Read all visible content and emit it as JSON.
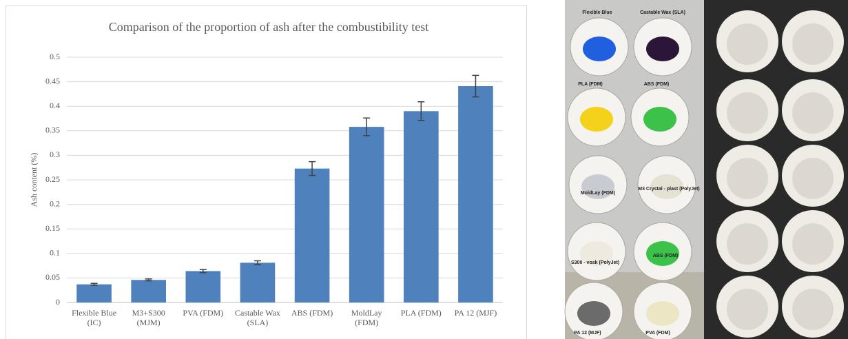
{
  "chart_data": {
    "type": "bar",
    "title": "Comparison of the proportion of ash after the combustibility test",
    "y_label": "Ash content (%)",
    "categories": [
      "Flexible Blue\n(IC)",
      "M3+S300\n(MJM)",
      "PVA (FDM)",
      "Castable Wax\n(SLA)",
      "ABS (FDM)",
      "MoldLay\n(FDM)",
      "PLA (FDM)",
      "PA 12 (MJF)"
    ],
    "values": [
      0.037,
      0.046,
      0.064,
      0.081,
      0.273,
      0.358,
      0.39,
      0.441
    ],
    "errors": [
      0.002,
      0.002,
      0.003,
      0.004,
      0.014,
      0.018,
      0.019,
      0.022
    ],
    "color": "#4f81bd",
    "ylim": [
      0,
      0.5
    ],
    "yticks": [
      0,
      0.05,
      0.1,
      0.15,
      0.2,
      0.25,
      0.3,
      0.35,
      0.4,
      0.45,
      0.5
    ],
    "grid": true
  },
  "photo": {
    "labels": [
      "Flexible Blue",
      "Castable Wax (SLA)",
      "PLA (FDM)",
      "ABS (FDM)",
      "MoldLay (FDM)",
      "M3 Crystal - plast (PolyJet)",
      "S300 - vosk (PolyJet)",
      "ABS (FDM)",
      "PA 12 (MJF)",
      "PVA (FDM)"
    ]
  }
}
